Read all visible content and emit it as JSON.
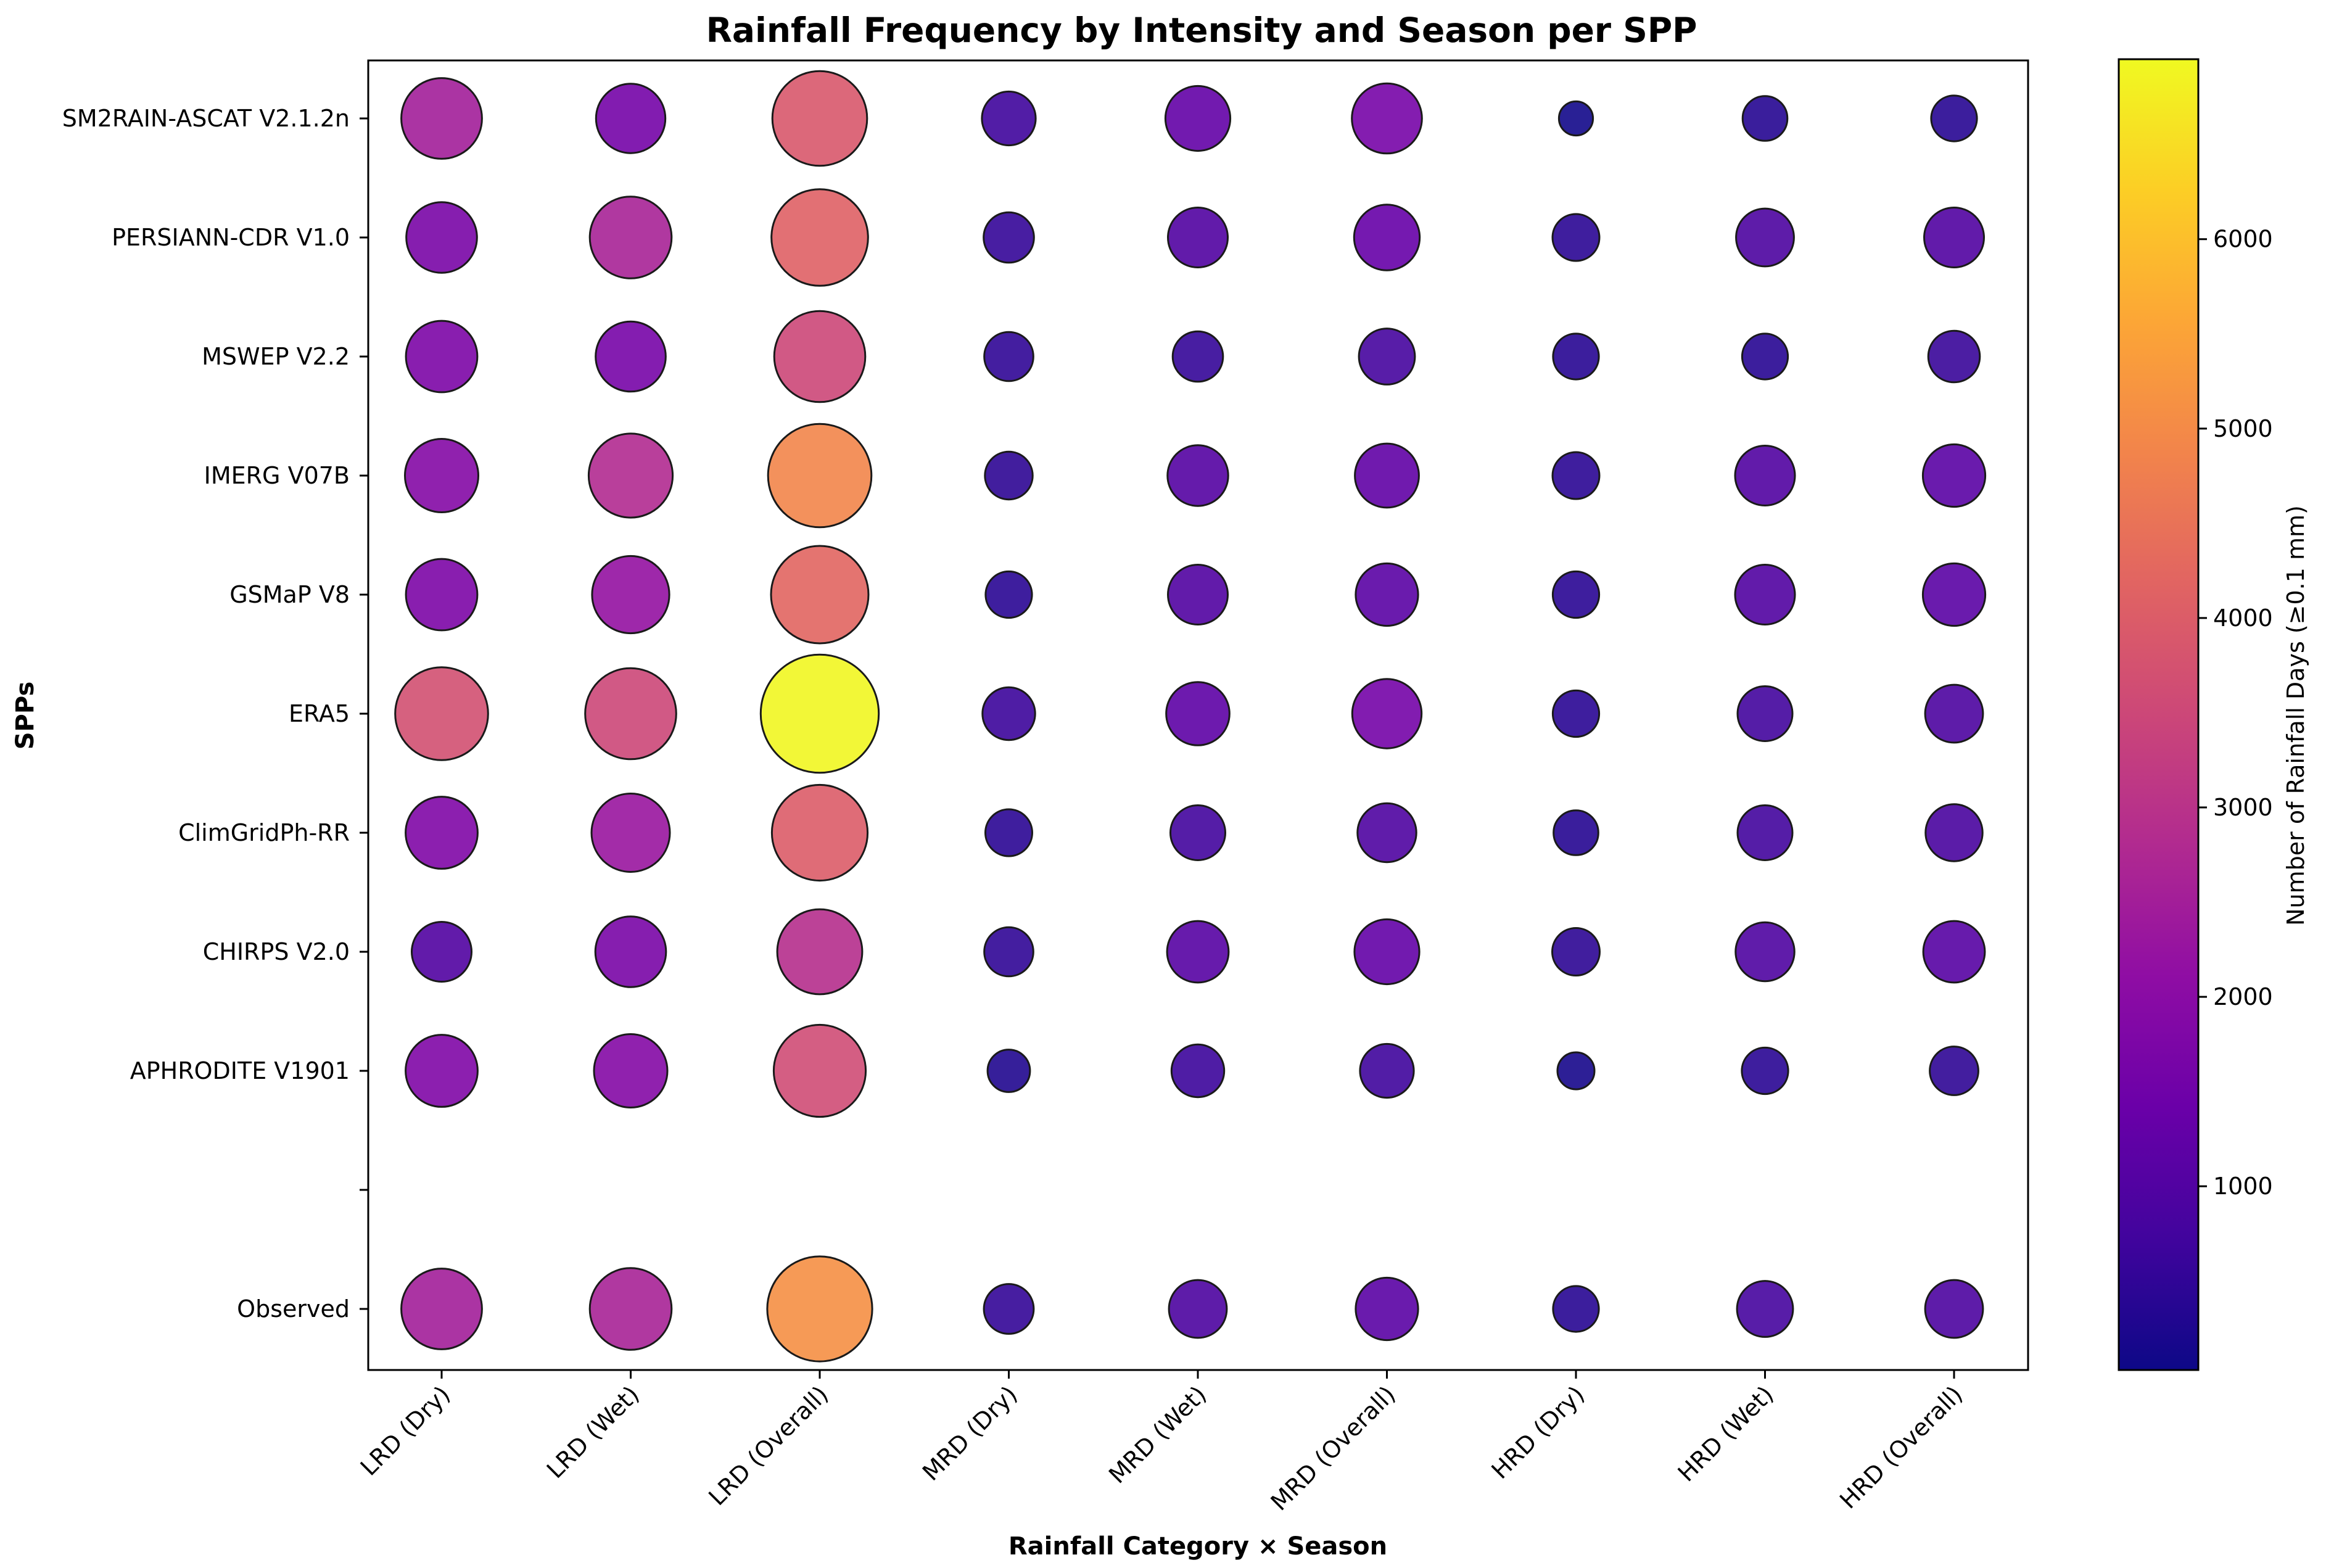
{
  "chart_data": {
    "type": "scatter",
    "subtype": "bubble-matrix",
    "title": "Rainfall Frequency by Intensity and Season per SPP",
    "xlabel": "Rainfall Category × Season",
    "ylabel": "SPPs",
    "categories": [
      "LRD (Dry)",
      "LRD (Wet)",
      "LRD (Overall)",
      "MRD (Dry)",
      "MRD (Wet)",
      "MRD (Overall)",
      "HRD (Dry)",
      "HRD (Wet)",
      "HRD (Overall)"
    ],
    "rows": [
      "SM2RAIN-ASCAT V2.1.2n",
      "PERSIANN-CDR V1.0",
      "MSWEP V2.2",
      "IMERG V07B",
      "GSMaP V8",
      "ERA5",
      "ClimGridPh-RR",
      "CHIRPS V2.0",
      "APHRODITE V1901",
      "",
      "Observed"
    ],
    "series": [
      {
        "name": "SM2RAIN-ASCAT V2.1.2n",
        "values": [
          2500,
          1600,
          3900,
          700,
          1300,
          1650,
          100,
          350,
          380
        ]
      },
      {
        "name": "PERSIANN-CDR V1.0",
        "values": [
          1700,
          2600,
          4100,
          550,
          1000,
          1350,
          420,
          900,
          1000
        ]
      },
      {
        "name": "MSWEP V2.2",
        "values": [
          1750,
          1650,
          3500,
          500,
          550,
          800,
          380,
          380,
          600
        ]
      },
      {
        "name": "IMERG V07B",
        "values": [
          1900,
          2800,
          4900,
          450,
          1050,
          1250,
          420,
          1000,
          1150
        ]
      },
      {
        "name": "GSMaP V8",
        "values": [
          1750,
          2200,
          4200,
          400,
          1000,
          1150,
          400,
          1000,
          1150
        ]
      },
      {
        "name": "ERA5",
        "values": [
          3700,
          3500,
          6900,
          650,
          1200,
          1600,
          400,
          750,
          900
        ]
      },
      {
        "name": "ClimGridPh-RR",
        "values": [
          1800,
          2300,
          4000,
          420,
          750,
          950,
          350,
          750,
          850
        ]
      },
      {
        "name": "CHIRPS V2.0",
        "values": [
          1000,
          1700,
          2900,
          500,
          1100,
          1300,
          440,
          950,
          1100
        ]
      },
      {
        "name": "APHRODITE V1901",
        "values": [
          1800,
          1900,
          3600,
          280,
          650,
          700,
          150,
          400,
          480
        ]
      },
      {
        "name": "Observed",
        "values": [
          2500,
          2600,
          5100,
          530,
          900,
          1150,
          380,
          800,
          900
        ]
      }
    ],
    "colorbar": {
      "label": "Number of Rainfall Days (≥0.1 mm)",
      "min": 30,
      "max": 6950,
      "ticks": [
        1000,
        2000,
        3000,
        4000,
        5000,
        6000
      ],
      "tick_labels": [
        "1000",
        "2000",
        "3000",
        "4000",
        "5000",
        "6000"
      ],
      "colormap": "plasma"
    },
    "size_encodes": "Number of Rainfall Days",
    "grid": false,
    "legend": "none"
  }
}
